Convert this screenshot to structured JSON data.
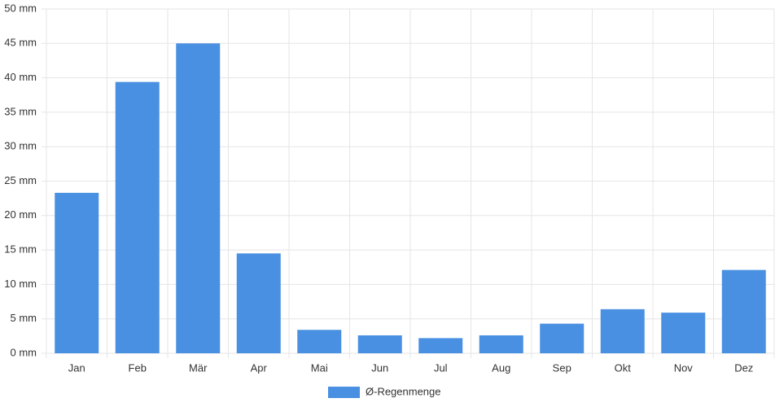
{
  "chart_data": {
    "type": "bar",
    "categories": [
      "Jan",
      "Feb",
      "Mär",
      "Apr",
      "Mai",
      "Jun",
      "Jul",
      "Aug",
      "Sep",
      "Okt",
      "Nov",
      "Dez"
    ],
    "series": [
      {
        "name": "Ø-Regenmenge",
        "color": "#4a90e2",
        "values": [
          23.3,
          39.4,
          45.0,
          14.5,
          3.4,
          2.6,
          2.2,
          2.6,
          4.3,
          6.4,
          5.9,
          12.1
        ]
      }
    ],
    "ylim": [
      0,
      50
    ],
    "yticks": [
      {
        "value": 0,
        "label": "0 mm"
      },
      {
        "value": 5,
        "label": "5 mm"
      },
      {
        "value": 10,
        "label": "10 mm"
      },
      {
        "value": 15,
        "label": "15 mm"
      },
      {
        "value": 20,
        "label": "20 mm"
      },
      {
        "value": 25,
        "label": "25 mm"
      },
      {
        "value": 30,
        "label": "30 mm"
      },
      {
        "value": 35,
        "label": "35 mm"
      },
      {
        "value": 40,
        "label": "40 mm"
      },
      {
        "value": 45,
        "label": "45 mm"
      },
      {
        "value": 50,
        "label": "50 mm"
      }
    ],
    "grid": true,
    "legend": "bottom"
  }
}
